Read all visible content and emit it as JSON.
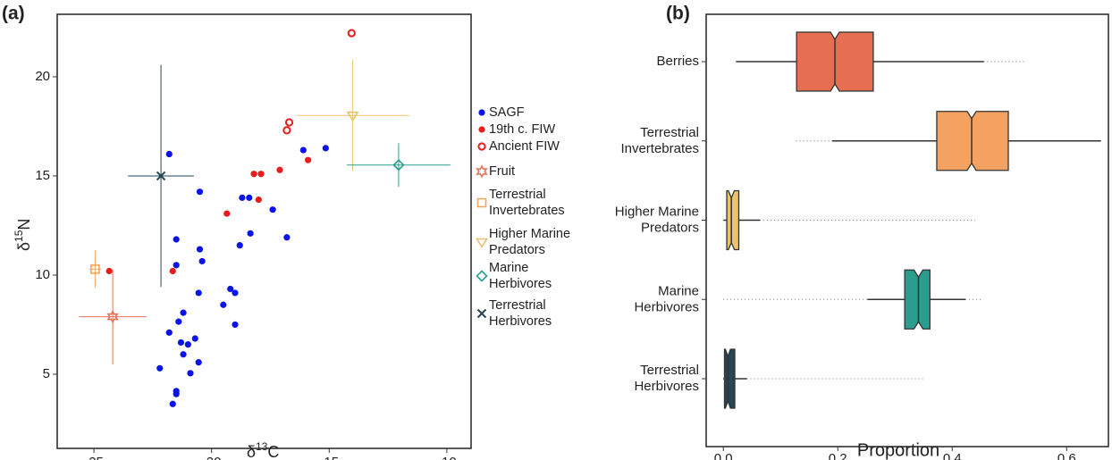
{
  "chart_data": [
    {
      "type": "scatter",
      "panel_label": "(a)",
      "x_label": [
        "δ",
        "13",
        "C"
      ],
      "y_label": [
        "δ",
        "15",
        "N"
      ],
      "xlim": [
        -26.56,
        -8.97
      ],
      "ylim": [
        1.26,
        23.15
      ],
      "xticks": [
        -25,
        -20,
        -15,
        -10
      ],
      "yticks": [
        5,
        10,
        15,
        20
      ],
      "series": [
        {
          "name": "SAGF",
          "color": "#0a14e6",
          "marker": "filled-circle",
          "x": [
            -21.8,
            -16.1,
            -15.15,
            -20.5,
            -18.7,
            -18.4,
            -17.4,
            -21.5,
            -20.5,
            -20.4,
            -18.35,
            -18.8,
            -16.8,
            -21.5,
            -20.55,
            -19.0,
            -19.2,
            -19.5,
            -19.0,
            -21.2,
            -21.8,
            -21.4,
            -21.3,
            -21.0,
            -20.7,
            -21.2,
            -20.9,
            -20.55,
            -22.2,
            -21.5,
            -21.5,
            -21.65
          ],
          "y": [
            16.1,
            16.3,
            16.4,
            14.2,
            13.9,
            13.9,
            13.3,
            11.8,
            11.3,
            10.7,
            12.1,
            11.5,
            11.9,
            10.5,
            9.1,
            9.1,
            9.3,
            8.5,
            7.5,
            8.1,
            7.1,
            7.65,
            6.6,
            6.5,
            6.8,
            6.0,
            5.05,
            5.6,
            5.3,
            4.15,
            4.0,
            3.5
          ]
        },
        {
          "name": "19th c. FIW",
          "color": "#e81c1c",
          "marker": "filled-circle",
          "x": [
            -21.65,
            -24.35,
            -19.35,
            -18.2,
            -17.9,
            -18.0,
            -17.1,
            -15.9
          ],
          "y": [
            10.2,
            10.2,
            13.1,
            15.1,
            15.1,
            13.8,
            15.3,
            15.8
          ]
        },
        {
          "name": "Ancient FIW",
          "color": "#e81c1c",
          "marker": "open-circle",
          "x": [
            -14.05,
            -16.7,
            -16.8
          ],
          "y": [
            22.2,
            17.7,
            17.3
          ]
        },
        {
          "name": "Fruit",
          "color": "#e8735a",
          "marker": "star",
          "x": [
            -24.2
          ],
          "y": [
            7.9
          ],
          "xerr": [
            1.43
          ],
          "yerr": [
            2.4
          ]
        },
        {
          "name": "Terrestrial\nInvertebrates",
          "color": "#f2a65a",
          "marker": "square",
          "x": [
            -24.95
          ],
          "y": [
            10.3
          ],
          "xerr": [
            0.25
          ],
          "yerr": [
            0.95
          ]
        },
        {
          "name": "Higher Marine\nPredators",
          "color": "#e8c170",
          "marker": "triangle-down",
          "x": [
            -14.0
          ],
          "y": [
            18.05
          ],
          "xerr": [
            2.4
          ],
          "yerr": [
            2.8
          ]
        },
        {
          "name": "Marine\nHerbivores",
          "color": "#2a9d8f",
          "marker": "diamond",
          "x": [
            -12.05
          ],
          "y": [
            15.55
          ],
          "xerr": [
            2.2
          ],
          "yerr": [
            1.1
          ]
        },
        {
          "name": "Terrestrial\nHerbivores",
          "color": "#264653",
          "marker": "x",
          "x": [
            -22.15
          ],
          "y": [
            15.0
          ],
          "xerr": [
            1.4
          ],
          "yerr": [
            5.6
          ]
        }
      ]
    },
    {
      "type": "box",
      "panel_label": "(b)",
      "x_label": "Proportion",
      "xlim": [
        -0.03,
        0.673
      ],
      "xticks": [
        {
          "value": 0.0,
          "label": "0.0"
        },
        {
          "value": 0.2,
          "label": "0.2"
        },
        {
          "value": 0.4,
          "label": "0.4"
        },
        {
          "value": 0.6,
          "label": "0.6"
        }
      ],
      "categories": [
        "Berries",
        "Terrestrial\nInvertebrates",
        "Higher Marine\nPredators",
        "Marine\nHerbivores",
        "Terrestrial\nHerbivores"
      ],
      "boxes": [
        {
          "color": "#e76f51",
          "whisker_low": 0.022,
          "q1": 0.128,
          "median": 0.195,
          "q3": 0.262,
          "whisker_high": 0.455,
          "outliers": [
            [
              0.455,
              0.53
            ]
          ]
        },
        {
          "color": "#f4a261",
          "whisker_low": 0.19,
          "q1": 0.373,
          "median": 0.434,
          "q3": 0.498,
          "whisker_high": 0.66,
          "outliers": [
            [
              0.127,
              0.19
            ]
          ]
        },
        {
          "color": "#e9c46a",
          "whisker_low": 0.0,
          "q1": 0.006,
          "median": 0.014,
          "q3": 0.027,
          "whisker_high": 0.064,
          "outliers": [
            [
              0.064,
              0.44
            ]
          ]
        },
        {
          "color": "#2a9d8f",
          "whisker_low": 0.252,
          "q1": 0.317,
          "median": 0.341,
          "q3": 0.361,
          "whisker_high": 0.423,
          "outliers": [
            [
              0.0,
              0.252
            ],
            [
              0.423,
              0.45
            ]
          ]
        },
        {
          "color": "#264653",
          "whisker_low": 0.0,
          "q1": 0.002,
          "median": 0.008,
          "q3": 0.02,
          "whisker_high": 0.041,
          "outliers": [
            [
              0.041,
              0.35
            ]
          ]
        }
      ]
    }
  ]
}
